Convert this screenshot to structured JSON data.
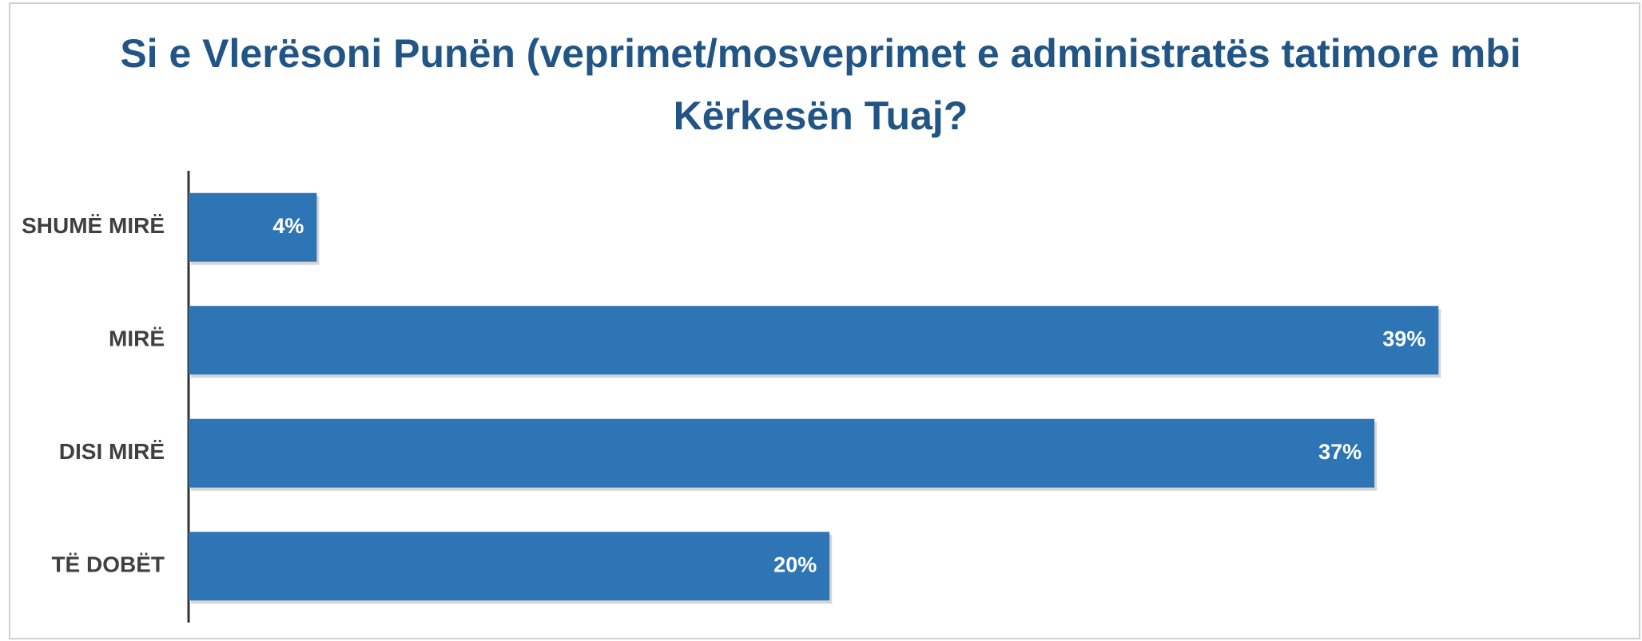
{
  "chart_data": {
    "type": "barh",
    "title": "Si e Vlerësoni Punën (veprimet/mosveprimet e administratës tatimore mbi Kërkesën Tuaj?",
    "categories": [
      "SHUMË MIRË",
      "MIRË",
      "DISI MIRË",
      "TË DOBËT"
    ],
    "values": [
      4,
      39,
      37,
      20
    ],
    "value_labels": [
      "4%",
      "39%",
      "37%",
      "20%"
    ],
    "color": "#2e75b6",
    "xlim": [
      0,
      45
    ]
  }
}
